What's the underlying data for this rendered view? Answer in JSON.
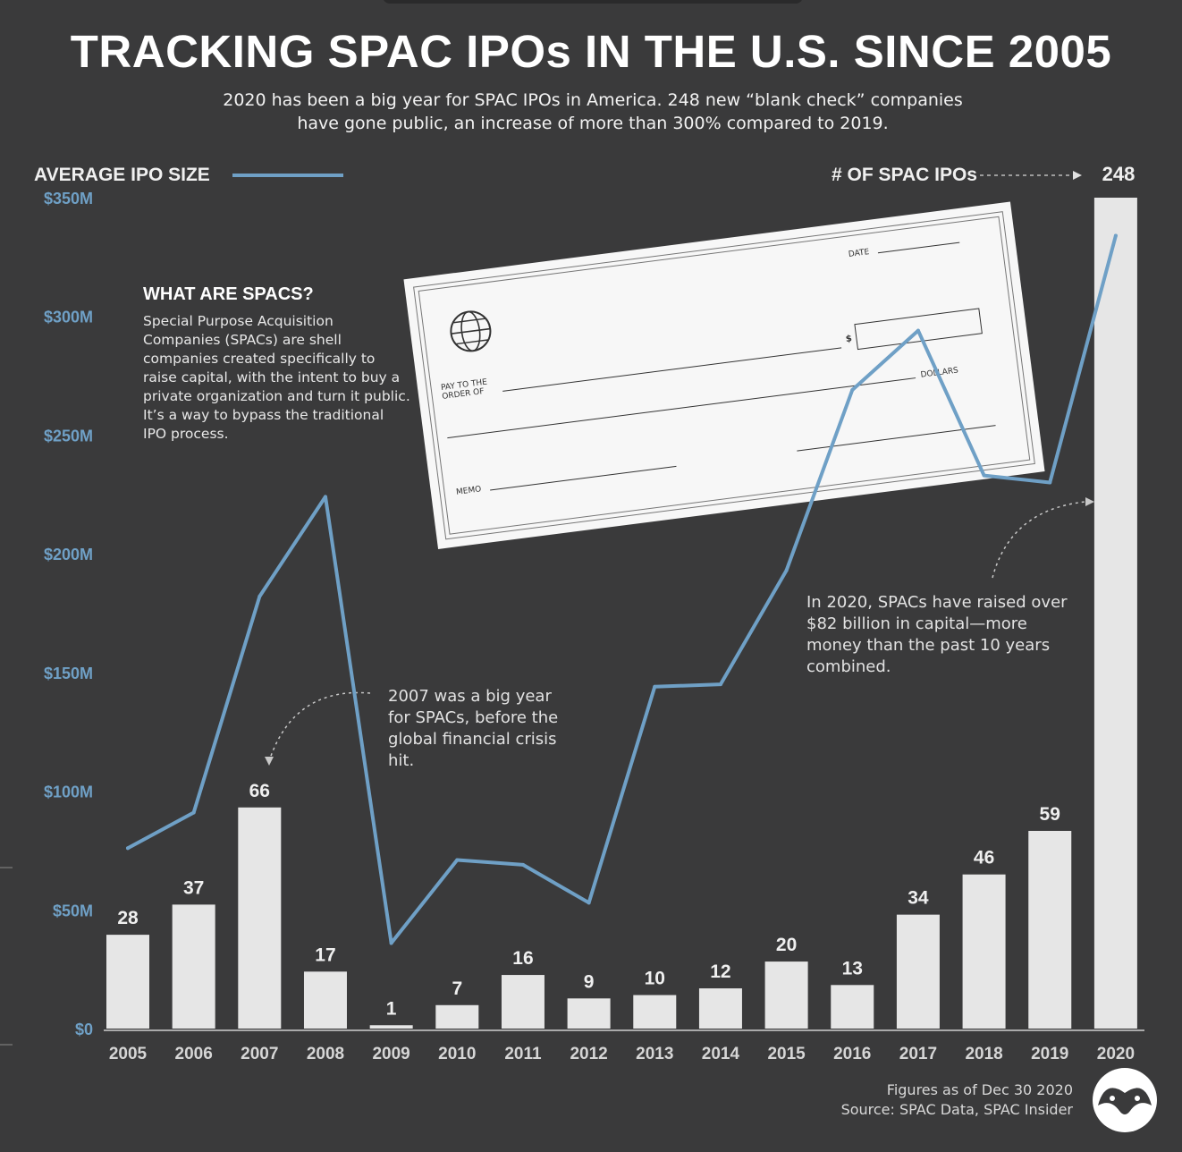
{
  "title": "TRACKING SPAC IPOs IN THE U.S. SINCE 2005",
  "subtitle_lines": [
    "2020 has been a big year for SPAC IPOs in America. 248 new “blank check” companies",
    "have gone public, an increase of more than 300% compared to 2019."
  ],
  "legend": {
    "left_label": "AVERAGE IPO SIZE",
    "right_label": "# OF SPAC IPOs"
  },
  "annotations": {
    "what_title": "WHAT ARE SPACS?",
    "what_body": "Special Purpose Acquisition Companies (SPACs) are shell companies created specifically to raise capital, with the intent to buy a private organization and turn it public. It’s a way to bypass the traditional IPO process.",
    "note_2007": "2007 was a big year for SPACs, before the global financial crisis hit.",
    "note_2020": "In 2020, SPACs have raised over $82 billion in capital—more money than the past 10 years combined."
  },
  "check": {
    "date_label": "DATE",
    "dollar_sign": "$",
    "pay_label_1": "PAY TO THE",
    "pay_label_2": "ORDER OF",
    "dollars_label": "DOLLARS",
    "memo_label": "MEMO"
  },
  "footnote": {
    "line1": "Figures as of Dec 30 2020",
    "line2": "Source: SPAC Data, SPAC Insider"
  },
  "colors": {
    "background": "#3a3a3b",
    "bar": "#e6e6e6",
    "line": "#6fa0c6",
    "left_axis_text": "#6fa0c6",
    "text": "#ffffff"
  },
  "chart_data": {
    "type": "bar",
    "categories": [
      "2005",
      "2006",
      "2007",
      "2008",
      "2009",
      "2010",
      "2011",
      "2012",
      "2013",
      "2014",
      "2015",
      "2016",
      "2017",
      "2018",
      "2019",
      "2020"
    ],
    "series": [
      {
        "name": "# OF SPAC IPOs",
        "type": "bar",
        "axis": "right",
        "values": [
          28,
          37,
          66,
          17,
          1,
          7,
          16,
          9,
          10,
          12,
          20,
          13,
          34,
          46,
          59,
          248
        ]
      },
      {
        "name": "AVERAGE IPO SIZE",
        "type": "line",
        "axis": "left",
        "unit": "$M",
        "values": [
          76,
          91,
          182,
          224,
          36,
          71,
          69,
          53,
          144,
          145,
          193,
          269,
          294,
          233,
          230,
          334
        ]
      }
    ],
    "y_left": {
      "ticks": [
        "$0",
        "$50M",
        "$100M",
        "$150M",
        "$200M",
        "$250M",
        "$300M",
        "$350M"
      ],
      "range": [
        0,
        350
      ]
    },
    "y_right": {
      "range": [
        0,
        248
      ]
    },
    "grid": false,
    "legend": "top"
  }
}
